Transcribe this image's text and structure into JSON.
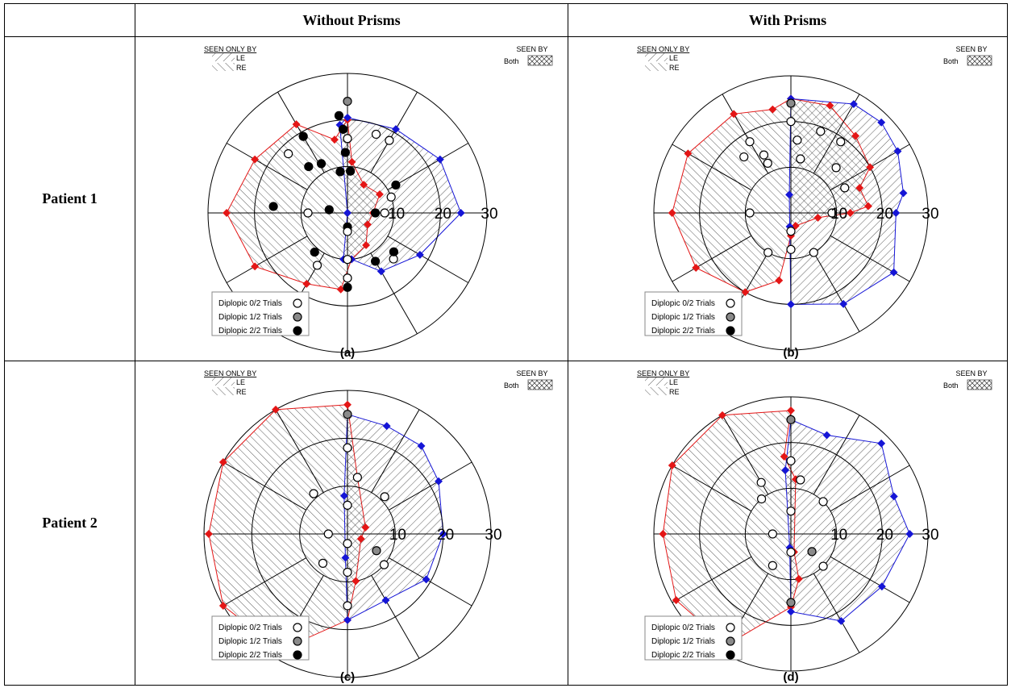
{
  "table": {
    "col_headers": [
      "",
      "Without Prisms",
      "With Prisms"
    ],
    "row_labels": [
      "Patient 1",
      "Patient 2"
    ]
  },
  "legend_common": {
    "seen_only_by": "SEEN ONLY BY",
    "le": "LE",
    "re": "RE",
    "seen_by": "SEEN BY",
    "both": "Both",
    "diplopic": [
      "Diplopic 0/2 Trials",
      "Diplopic 1/2 Trials",
      "Diplopic 2/2 Trials"
    ]
  },
  "colors": {
    "le": "#1515d6",
    "re": "#e41616",
    "grid": "#000000",
    "gray_marker": "#8a8a8a"
  },
  "chart_data": [
    {
      "type": "polar",
      "panel": "(a)",
      "radial_ticks": [
        "10",
        "20",
        "30"
      ],
      "radial_ticks_values": [
        10,
        20,
        30
      ],
      "rmax": 30,
      "le_boundary": [
        [
          90,
          20.5
        ],
        [
          60,
          20.8
        ],
        [
          30,
          23
        ],
        [
          0,
          24.4
        ],
        [
          -30,
          18
        ],
        [
          -60,
          14.5
        ],
        [
          -85,
          10
        ],
        [
          -95,
          10
        ],
        [
          180,
          0
        ],
        [
          95,
          19
        ]
      ],
      "re_boundary": [
        [
          90,
          20
        ],
        [
          100,
          16
        ],
        [
          120,
          22
        ],
        [
          150,
          23
        ],
        [
          180,
          26
        ],
        [
          210,
          23
        ],
        [
          240,
          17.6
        ],
        [
          265,
          16.5
        ],
        [
          275,
          10
        ],
        [
          -60,
          8
        ],
        [
          -30,
          5
        ],
        [
          0,
          5.5
        ],
        [
          30,
          8
        ],
        [
          60,
          7
        ],
        [
          85,
          11
        ]
      ],
      "diplopia_points": [
        [
          90,
          24,
          1
        ],
        [
          95,
          21,
          2
        ],
        [
          93,
          18,
          2
        ],
        [
          90,
          16,
          0
        ],
        [
          92,
          13,
          2
        ],
        [
          86,
          9,
          2
        ],
        [
          100,
          9,
          2
        ],
        [
          118,
          12,
          2
        ],
        [
          130,
          13,
          2
        ],
        [
          135,
          18,
          0
        ],
        [
          120,
          19,
          2
        ],
        [
          60,
          18,
          0
        ],
        [
          70,
          18,
          0
        ],
        [
          30,
          12,
          2
        ],
        [
          20,
          10,
          0
        ],
        [
          180,
          8.5,
          0
        ],
        [
          170,
          4,
          2
        ],
        [
          175,
          16,
          2
        ],
        [
          0,
          6,
          2
        ],
        [
          0,
          8,
          0
        ],
        [
          -90,
          3,
          2
        ],
        [
          -90,
          4,
          0
        ],
        [
          -60,
          12,
          2
        ],
        [
          -130,
          11,
          2
        ],
        [
          -120,
          13,
          0
        ],
        [
          -90,
          14,
          0
        ],
        [
          -45,
          14,
          0
        ],
        [
          -40,
          13,
          2
        ],
        [
          -90,
          16,
          2
        ],
        [
          -90,
          10,
          0
        ]
      ]
    },
    {
      "type": "polar",
      "panel": "(b)",
      "radial_ticks": [
        "10",
        "20",
        "30"
      ],
      "radial_ticks_values": [
        10,
        20,
        30
      ],
      "rmax": 30,
      "le_boundary": [
        [
          90,
          25
        ],
        [
          60,
          27.5
        ],
        [
          45,
          28
        ],
        [
          30,
          27
        ],
        [
          10,
          25
        ],
        [
          0,
          23
        ],
        [
          -30,
          26
        ],
        [
          -60,
          23
        ],
        [
          -90,
          20
        ],
        [
          -95,
          3
        ],
        [
          95,
          4
        ]
      ],
      "re_boundary": [
        [
          90,
          25
        ],
        [
          70,
          25
        ],
        [
          50,
          22
        ],
        [
          30,
          20
        ],
        [
          20,
          16
        ],
        [
          5,
          17
        ],
        [
          0,
          13
        ],
        [
          -10,
          6
        ],
        [
          -70,
          3
        ],
        [
          -90,
          5
        ],
        [
          -100,
          15
        ],
        [
          -120,
          20
        ],
        [
          -150,
          24
        ],
        [
          -180,
          26
        ],
        [
          150,
          26
        ],
        [
          120,
          25
        ],
        [
          100,
          23
        ]
      ],
      "diplopia_points": [
        [
          90,
          24,
          1
        ],
        [
          90,
          20,
          0
        ],
        [
          85,
          16,
          0
        ],
        [
          80,
          12,
          0
        ],
        [
          70,
          19,
          0
        ],
        [
          55,
          19,
          0
        ],
        [
          45,
          14,
          0
        ],
        [
          25,
          13,
          0
        ],
        [
          120,
          18,
          0
        ],
        [
          130,
          16,
          0
        ],
        [
          115,
          14,
          0
        ],
        [
          115,
          12,
          0
        ],
        [
          180,
          9,
          0
        ],
        [
          0,
          9,
          0
        ],
        [
          -90,
          4,
          0
        ],
        [
          -90,
          8,
          0
        ],
        [
          -60,
          10,
          0
        ],
        [
          -120,
          10,
          0
        ]
      ]
    },
    {
      "type": "polar",
      "panel": "(c)",
      "radial_ticks": [
        "10",
        "20",
        "30"
      ],
      "radial_ticks_values": [
        10,
        20,
        30
      ],
      "rmax": 30,
      "le_boundary": [
        [
          90,
          25
        ],
        [
          70,
          24
        ],
        [
          50,
          24
        ],
        [
          30,
          22
        ],
        [
          0,
          20
        ],
        [
          -30,
          19
        ],
        [
          -60,
          16
        ],
        [
          -90,
          18
        ],
        [
          -95,
          5
        ],
        [
          95,
          8
        ]
      ],
      "re_boundary": [
        [
          90,
          27
        ],
        [
          120,
          30
        ],
        [
          150,
          30
        ],
        [
          180,
          29
        ],
        [
          210,
          30
        ],
        [
          240,
          28
        ],
        [
          -90,
          18
        ],
        [
          -80,
          10
        ],
        [
          -20,
          3
        ],
        [
          20,
          4
        ],
        [
          80,
          12
        ]
      ],
      "diplopia_points": [
        [
          90,
          25,
          1
        ],
        [
          90,
          18,
          0
        ],
        [
          80,
          12,
          0
        ],
        [
          45,
          11,
          0
        ],
        [
          130,
          11,
          0
        ],
        [
          180,
          4,
          0
        ],
        [
          90,
          6,
          0
        ],
        [
          -90,
          2,
          0
        ],
        [
          -30,
          7,
          1
        ],
        [
          -90,
          8,
          0
        ],
        [
          -130,
          8,
          0
        ],
        [
          -40,
          10,
          0
        ],
        [
          -90,
          15,
          0
        ]
      ]
    },
    {
      "type": "polar",
      "panel": "(d)",
      "radial_ticks": [
        "10",
        "20",
        "30"
      ],
      "radial_ticks_values": [
        10,
        20,
        30
      ],
      "rmax": 30,
      "le_boundary": [
        [
          90,
          25
        ],
        [
          70,
          23
        ],
        [
          45,
          28
        ],
        [
          20,
          24
        ],
        [
          0,
          26
        ],
        [
          -30,
          23
        ],
        [
          -60,
          22
        ],
        [
          -90,
          17
        ],
        [
          -95,
          3
        ],
        [
          95,
          14
        ]
      ],
      "re_boundary": [
        [
          90,
          27
        ],
        [
          120,
          30
        ],
        [
          150,
          30
        ],
        [
          180,
          28
        ],
        [
          210,
          29
        ],
        [
          240,
          28
        ],
        [
          -90,
          16
        ],
        [
          -80,
          10
        ],
        [
          -80,
          4
        ],
        [
          85,
          12
        ],
        [
          95,
          17
        ]
      ],
      "diplopia_points": [
        [
          90,
          25,
          1
        ],
        [
          90,
          16,
          0
        ],
        [
          80,
          12,
          0
        ],
        [
          45,
          10,
          0
        ],
        [
          120,
          13,
          0
        ],
        [
          130,
          10,
          0
        ],
        [
          180,
          4,
          0
        ],
        [
          90,
          5,
          0
        ],
        [
          -40,
          6,
          1
        ],
        [
          -90,
          4,
          0
        ],
        [
          -120,
          8,
          0
        ],
        [
          -45,
          10,
          0
        ],
        [
          -90,
          15,
          1
        ]
      ]
    }
  ],
  "panel_labels": [
    "(a)",
    "(b)",
    "(c)",
    "(d)"
  ]
}
